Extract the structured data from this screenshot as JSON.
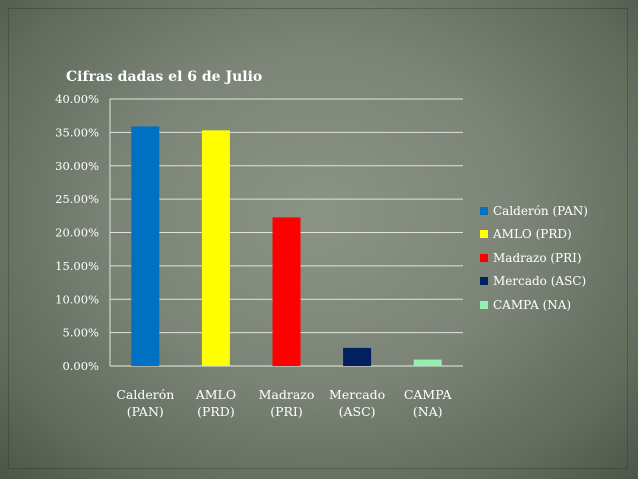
{
  "chart_data": {
    "type": "bar",
    "title": "Cifras dadas el 6 de Julio",
    "categories": [
      [
        "Calderón",
        "(PAN)"
      ],
      [
        "AMLO",
        "(PRD)"
      ],
      [
        "Madrazo",
        "(PRI)"
      ],
      [
        "Mercado",
        "(ASC)"
      ],
      [
        "CAMPA",
        "(NA)"
      ]
    ],
    "values": [
      35.89,
      35.31,
      22.26,
      2.71,
      0.96
    ],
    "colors": [
      "#0070c0",
      "#ffff00",
      "#ff0000",
      "#002060",
      "#92f0b0"
    ],
    "ylim": [
      0,
      40
    ],
    "ytick_step": 5,
    "ytick_labels": [
      "0.00%",
      "5.00%",
      "10.00%",
      "15.00%",
      "20.00%",
      "25.00%",
      "30.00%",
      "35.00%",
      "40.00%"
    ],
    "grid": true,
    "legend": {
      "placement": "right",
      "entries": [
        "Calderón (PAN)",
        "AMLO (PRD)",
        "Madrazo (PRI)",
        "Mercado (ASC)",
        "CAMPA (NA)"
      ]
    }
  }
}
